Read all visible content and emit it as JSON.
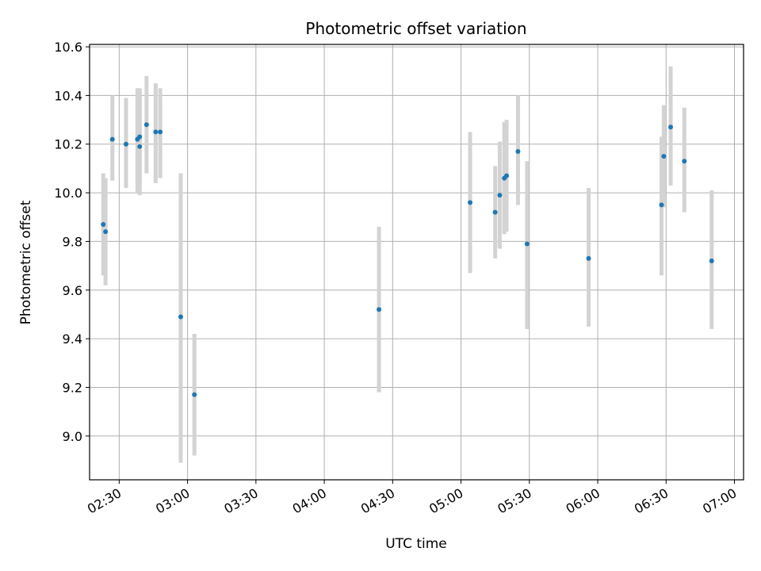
{
  "chart_data": {
    "type": "scatter",
    "title": "Photometric offset variation",
    "xlabel": "UTC time",
    "ylabel": "Photometric offset",
    "x_tick_labels": [
      "02:30",
      "03:00",
      "03:30",
      "04:00",
      "04:30",
      "05:00",
      "05:30",
      "06:00",
      "06:30",
      "07:00"
    ],
    "x_ticks": [
      "02:30",
      "03:00",
      "03:30",
      "04:00",
      "04:30",
      "05:00",
      "05:30",
      "06:00",
      "06:30",
      "07:00"
    ],
    "xlim": [
      "02:17",
      "07:04"
    ],
    "y_tick_labels": [
      "9.0",
      "9.2",
      "9.4",
      "9.6",
      "9.8",
      "10.0",
      "10.2",
      "10.4",
      "10.6"
    ],
    "y_ticks": [
      9.0,
      9.2,
      9.4,
      9.6,
      9.8,
      10.0,
      10.2,
      10.4,
      10.6
    ],
    "ylim": [
      8.82,
      10.61
    ],
    "grid": true,
    "colors": {
      "point": "#1f77b4",
      "errorbar": "#d3d3d3",
      "grid": "#b0b0b0",
      "axes": "#000000"
    },
    "series": [
      {
        "points": [
          {
            "x": "02:23",
            "y": 9.87,
            "ylo": 9.66,
            "yhi": 10.08
          },
          {
            "x": "02:24",
            "y": 9.84,
            "ylo": 9.62,
            "yhi": 10.06
          },
          {
            "x": "02:27",
            "y": 10.22,
            "ylo": 10.05,
            "yhi": 10.4
          },
          {
            "x": "02:33",
            "y": 10.2,
            "ylo": 10.02,
            "yhi": 10.39
          },
          {
            "x": "02:38",
            "y": 10.22,
            "ylo": 10.0,
            "yhi": 10.43
          },
          {
            "x": "02:39",
            "y": 10.23,
            "ylo": 10.02,
            "yhi": 10.43
          },
          {
            "x": "02:39",
            "y": 10.19,
            "ylo": 9.99,
            "yhi": 10.4
          },
          {
            "x": "02:42",
            "y": 10.28,
            "ylo": 10.08,
            "yhi": 10.48
          },
          {
            "x": "02:46",
            "y": 10.25,
            "ylo": 10.04,
            "yhi": 10.45
          },
          {
            "x": "02:48",
            "y": 10.25,
            "ylo": 10.06,
            "yhi": 10.43
          },
          {
            "x": "02:57",
            "y": 9.49,
            "ylo": 8.89,
            "yhi": 10.08
          },
          {
            "x": "03:03",
            "y": 9.17,
            "ylo": 8.92,
            "yhi": 9.42
          },
          {
            "x": "04:24",
            "y": 9.52,
            "ylo": 9.18,
            "yhi": 9.86
          },
          {
            "x": "05:04",
            "y": 9.96,
            "ylo": 9.67,
            "yhi": 10.25
          },
          {
            "x": "05:15",
            "y": 9.92,
            "ylo": 9.73,
            "yhi": 10.11
          },
          {
            "x": "05:17",
            "y": 9.99,
            "ylo": 9.77,
            "yhi": 10.21
          },
          {
            "x": "05:19",
            "y": 10.06,
            "ylo": 9.83,
            "yhi": 10.29
          },
          {
            "x": "05:20",
            "y": 10.07,
            "ylo": 9.84,
            "yhi": 10.3
          },
          {
            "x": "05:25",
            "y": 10.17,
            "ylo": 9.95,
            "yhi": 10.4
          },
          {
            "x": "05:29",
            "y": 9.79,
            "ylo": 9.44,
            "yhi": 10.13
          },
          {
            "x": "05:56",
            "y": 9.73,
            "ylo": 9.45,
            "yhi": 10.02
          },
          {
            "x": "06:28",
            "y": 9.95,
            "ylo": 9.66,
            "yhi": 10.23
          },
          {
            "x": "06:29",
            "y": 10.15,
            "ylo": 9.94,
            "yhi": 10.36
          },
          {
            "x": "06:32",
            "y": 10.27,
            "ylo": 10.03,
            "yhi": 10.52
          },
          {
            "x": "06:38",
            "y": 10.13,
            "ylo": 9.92,
            "yhi": 10.35
          },
          {
            "x": "06:50",
            "y": 9.72,
            "ylo": 9.44,
            "yhi": 10.01
          }
        ]
      }
    ]
  }
}
